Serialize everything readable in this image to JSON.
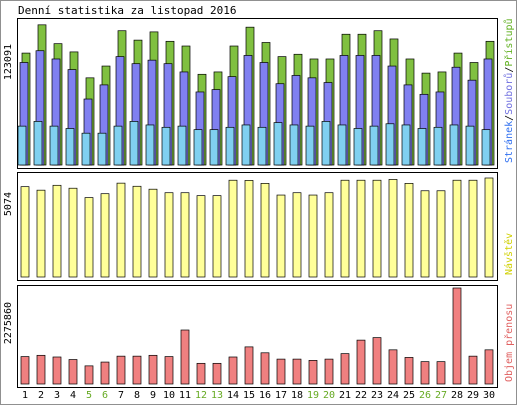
{
  "chart_data": {
    "type": "bar",
    "title": "Denní statistika za listopad 2016",
    "x": [
      "1",
      "2",
      "3",
      "4",
      "5",
      "6",
      "7",
      "8",
      "9",
      "10",
      "11",
      "12",
      "13",
      "14",
      "15",
      "16",
      "17",
      "18",
      "19",
      "20",
      "21",
      "22",
      "23",
      "24",
      "25",
      "26",
      "27",
      "28",
      "29",
      "30"
    ],
    "weekend_days": [
      "5",
      "6",
      "12",
      "13",
      "19",
      "20",
      "26",
      "27"
    ],
    "panels": [
      {
        "max_label": "123091",
        "ymax": 123091,
        "side_label_parts": [
          "Stránek",
          "/",
          "Souborů",
          "/",
          "Přístupů"
        ],
        "series": [
          {
            "name": "Přístupů",
            "color": "#80c040",
            "values": [
              95000,
              119000,
              103000,
              96000,
              74000,
              84000,
              114000,
              106000,
              113000,
              105000,
              101000,
              77000,
              79000,
              101000,
              117000,
              104000,
              92000,
              94000,
              90000,
              90000,
              111000,
              111000,
              114000,
              107000,
              90000,
              78000,
              79000,
              95000,
              87000,
              105000
            ]
          },
          {
            "name": "Souborů",
            "color": "#8080f0",
            "values": [
              87000,
              97000,
              90000,
              81000,
              56000,
              68000,
              92000,
              86000,
              89000,
              86000,
              79000,
              62000,
              64000,
              75000,
              93000,
              87000,
              69000,
              76000,
              74000,
              70000,
              93000,
              93000,
              93000,
              84000,
              68000,
              60000,
              62000,
              83000,
              72000,
              90000
            ]
          },
          {
            "name": "Stránek",
            "color": "#80d0f0",
            "values": [
              33000,
              37000,
              33000,
              31000,
              27000,
              27000,
              33000,
              37000,
              34000,
              32000,
              33000,
              30000,
              30000,
              32000,
              34000,
              32000,
              36000,
              34000,
              33000,
              37000,
              34000,
              31000,
              33000,
              35000,
              34000,
              31000,
              32000,
              34000,
              33000,
              30000
            ]
          }
        ]
      },
      {
        "max_label": "5074",
        "ymax": 5074,
        "side_label_parts": [
          "Návštěv"
        ],
        "series": [
          {
            "name": "Návštěv",
            "color": "#ffff99",
            "values": [
              4630,
              4450,
              4700,
              4550,
              4070,
              4270,
              4810,
              4650,
              4500,
              4320,
              4320,
              4170,
              4170,
              4960,
              4950,
              4800,
              4200,
              4320,
              4200,
              4320,
              4960,
              4960,
              4960,
              5000,
              4800,
              4420,
              4420,
              4960,
              4960,
              5074
            ]
          }
        ]
      },
      {
        "max_label": "2275860",
        "ymax": 2275860,
        "side_label_parts": [
          "Objem přenosu"
        ],
        "series": [
          {
            "name": "Objem přenosu",
            "color": "#f08080",
            "values": [
              650000,
              680000,
              640000,
              580000,
              430000,
              520000,
              660000,
              660000,
              680000,
              650000,
              1280000,
              490000,
              490000,
              640000,
              880000,
              740000,
              590000,
              590000,
              560000,
              590000,
              720000,
              1040000,
              1100000,
              810000,
              630000,
              530000,
              530000,
              2275860,
              660000,
              810000
            ]
          }
        ]
      }
    ]
  }
}
